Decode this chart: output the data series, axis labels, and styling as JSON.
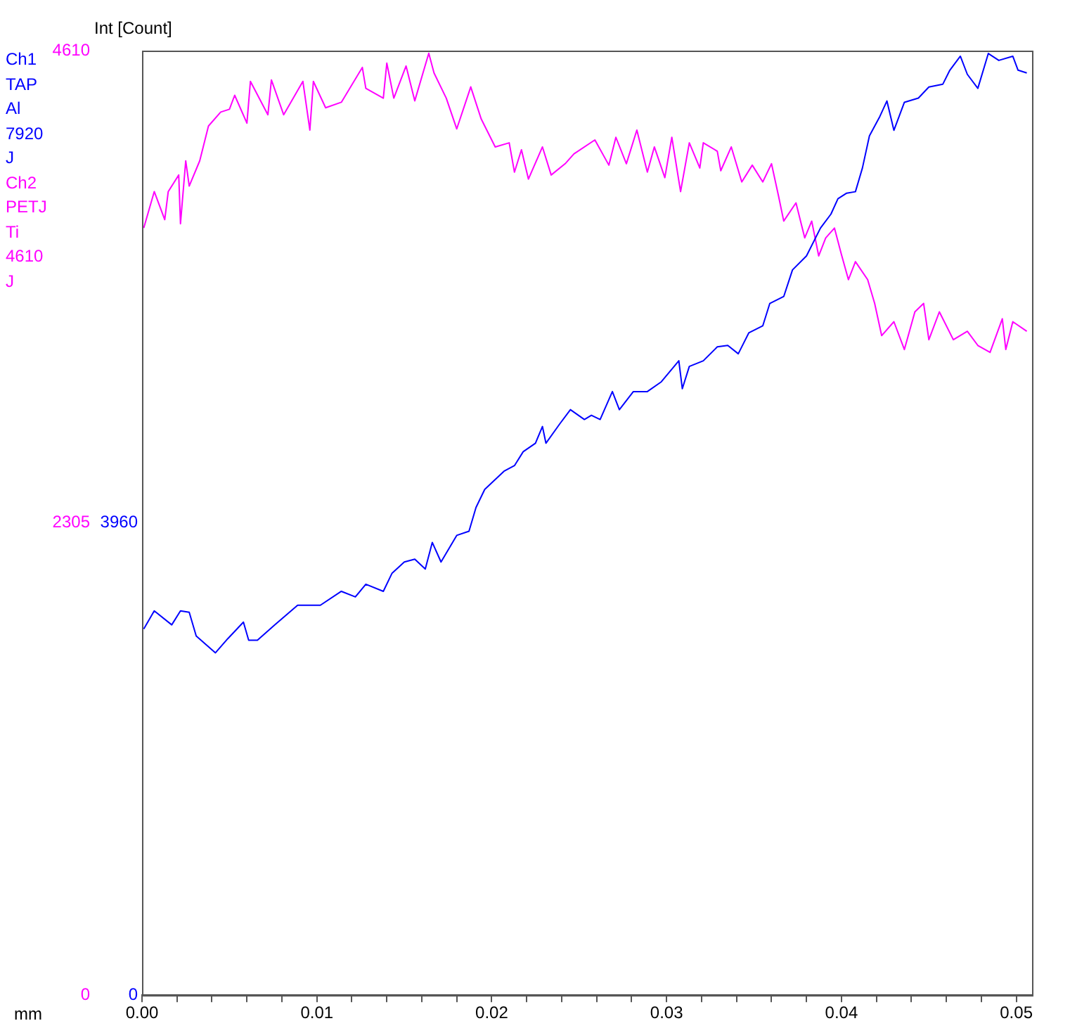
{
  "chart_data": {
    "type": "line",
    "xlabel": "mm",
    "ylabel": "Int [Count]",
    "legend": "left",
    "grid": false,
    "marker": "none",
    "line_style": "solid",
    "xlim": [
      0,
      0.0509
    ],
    "xticks": [
      {
        "value": 0,
        "label": "0.00"
      },
      {
        "value": 0.002,
        "label": null
      },
      {
        "value": 0.004,
        "label": null
      },
      {
        "value": 0.006,
        "label": null
      },
      {
        "value": 0.008,
        "label": null
      },
      {
        "value": 0.01,
        "label": "0.01"
      },
      {
        "value": 0.012,
        "label": null
      },
      {
        "value": 0.014,
        "label": null
      },
      {
        "value": 0.016,
        "label": null
      },
      {
        "value": 0.018,
        "label": null
      },
      {
        "value": 0.02,
        "label": "0.02"
      },
      {
        "value": 0.022,
        "label": null
      },
      {
        "value": 0.024,
        "label": null
      },
      {
        "value": 0.026,
        "label": null
      },
      {
        "value": 0.028,
        "label": null
      },
      {
        "value": 0.03,
        "label": "0.03"
      },
      {
        "value": 0.032,
        "label": null
      },
      {
        "value": 0.034,
        "label": null
      },
      {
        "value": 0.036,
        "label": null
      },
      {
        "value": 0.038,
        "label": null
      },
      {
        "value": 0.04,
        "label": "0.04"
      },
      {
        "value": 0.042,
        "label": null
      },
      {
        "value": 0.044,
        "label": null
      },
      {
        "value": 0.046,
        "label": null
      },
      {
        "value": 0.048,
        "label": null
      },
      {
        "value": 0.05,
        "label": "0.05"
      }
    ],
    "ylim": [
      0,
      7920
    ],
    "yticks": [
      0,
      3960
    ],
    "y2lim": [
      0,
      4610
    ],
    "y2ticks": [
      0,
      2305,
      4610
    ],
    "series": [
      {
        "name": "Ch1 TAP Al 7920 J",
        "color": "#0000ff",
        "axis": "y",
        "x": [
          0.0001,
          0.0007,
          0.0017,
          0.0022,
          0.0027,
          0.0031,
          0.0042,
          0.0049,
          0.0058,
          0.0061,
          0.0066,
          0.0076,
          0.0089,
          0.0102,
          0.0114,
          0.0122,
          0.0128,
          0.0138,
          0.0143,
          0.015,
          0.0156,
          0.0162,
          0.0166,
          0.0171,
          0.018,
          0.0187,
          0.0191,
          0.0196,
          0.0207,
          0.0213,
          0.0218,
          0.0225,
          0.0229,
          0.0231,
          0.0239,
          0.0245,
          0.0253,
          0.0257,
          0.0262,
          0.0269,
          0.0273,
          0.0281,
          0.0289,
          0.0297,
          0.0307,
          0.0309,
          0.0313,
          0.0321,
          0.0329,
          0.0335,
          0.0341,
          0.0347,
          0.0355,
          0.0359,
          0.0367,
          0.0372,
          0.038,
          0.0388,
          0.0394,
          0.0398,
          0.0403,
          0.0408,
          0.0412,
          0.0416,
          0.0422,
          0.0426,
          0.043,
          0.0436,
          0.0444,
          0.045,
          0.0458,
          0.0462,
          0.0468,
          0.0472,
          0.0478,
          0.0484,
          0.049,
          0.0498,
          0.0501,
          0.0506
        ],
        "values": [
          3070,
          3222,
          3105,
          3222,
          3210,
          3011,
          2870,
          2988,
          3128,
          2976,
          2976,
          3105,
          3269,
          3269,
          3386,
          3339,
          3445,
          3386,
          3538,
          3632,
          3655,
          3573,
          3796,
          3632,
          3855,
          3890,
          4089,
          4241,
          4393,
          4440,
          4557,
          4628,
          4768,
          4628,
          4792,
          4909,
          4827,
          4862,
          4827,
          5061,
          4909,
          5061,
          5061,
          5143,
          5319,
          5085,
          5272,
          5319,
          5436,
          5448,
          5378,
          5553,
          5612,
          5799,
          5858,
          6081,
          6198,
          6432,
          6549,
          6678,
          6725,
          6737,
          6936,
          7205,
          7369,
          7498,
          7252,
          7487,
          7522,
          7615,
          7639,
          7756,
          7873,
          7721,
          7604,
          7896,
          7838,
          7873,
          7756,
          7733
        ]
      },
      {
        "name": "Ch2 PETJ Ti 4610 J",
        "color": "#ff00ff",
        "axis": "y2",
        "x": [
          0.0001,
          0.0007,
          0.0013,
          0.0015,
          0.0021,
          0.0022,
          0.0025,
          0.0027,
          0.0033,
          0.0038,
          0.0045,
          0.005,
          0.0053,
          0.006,
          0.0062,
          0.0072,
          0.0074,
          0.0081,
          0.0092,
          0.0096,
          0.0098,
          0.0105,
          0.0114,
          0.0126,
          0.0128,
          0.0138,
          0.014,
          0.0144,
          0.0151,
          0.0156,
          0.0164,
          0.0167,
          0.0174,
          0.018,
          0.0188,
          0.0194,
          0.0202,
          0.021,
          0.0213,
          0.0217,
          0.0221,
          0.0229,
          0.0234,
          0.0242,
          0.0247,
          0.0259,
          0.0267,
          0.0271,
          0.0277,
          0.0283,
          0.0289,
          0.0293,
          0.0299,
          0.0303,
          0.0308,
          0.0313,
          0.0319,
          0.0321,
          0.0329,
          0.0331,
          0.0337,
          0.0343,
          0.0349,
          0.0355,
          0.036,
          0.0364,
          0.0367,
          0.0374,
          0.0379,
          0.0383,
          0.0387,
          0.0391,
          0.0396,
          0.04,
          0.0404,
          0.0408,
          0.0415,
          0.0419,
          0.0423,
          0.043,
          0.0436,
          0.0442,
          0.0447,
          0.045,
          0.0456,
          0.0464,
          0.0472,
          0.0478,
          0.0485,
          0.0492,
          0.0494,
          0.0498,
          0.0506
        ],
        "values": [
          3744,
          3922,
          3785,
          3922,
          4003,
          3765,
          4072,
          3949,
          4072,
          4242,
          4310,
          4324,
          4392,
          4256,
          4460,
          4297,
          4467,
          4297,
          4460,
          4222,
          4460,
          4331,
          4358,
          4528,
          4426,
          4378,
          4549,
          4378,
          4535,
          4365,
          4597,
          4501,
          4378,
          4228,
          4433,
          4276,
          4140,
          4160,
          4017,
          4126,
          3983,
          4140,
          4003,
          4058,
          4106,
          4174,
          4051,
          4187,
          4058,
          4222,
          4017,
          4140,
          3990,
          4187,
          3922,
          4160,
          4037,
          4160,
          4119,
          4024,
          4140,
          3969,
          4051,
          3969,
          4058,
          3901,
          3778,
          3867,
          3696,
          3778,
          3608,
          3696,
          3744,
          3615,
          3492,
          3580,
          3492,
          3376,
          3219,
          3287,
          3151,
          3335,
          3376,
          3199,
          3335,
          3199,
          3240,
          3171,
          3137,
          3301,
          3151,
          3287,
          3240
        ]
      }
    ]
  }
}
